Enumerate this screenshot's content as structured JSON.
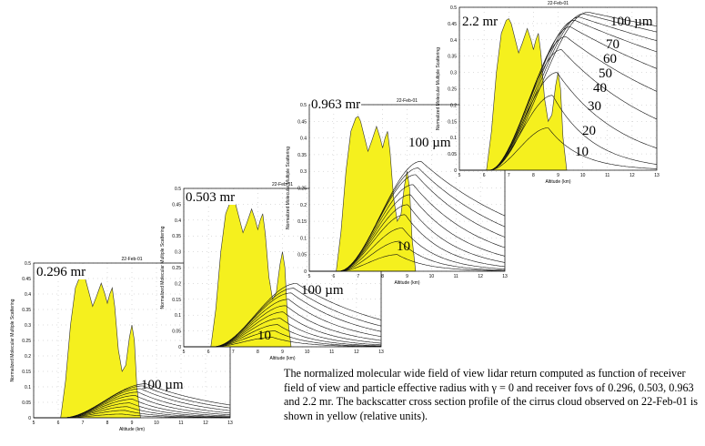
{
  "caption": "The normalized molecular wide field of view lidar return computed as function of receiver field of view and particle effective radius with γ = 0  and receiver fovs of 0.296, 0.503, 0.963 and 2.2 mr.  The backscatter cross section profile of the cirrus cloud observed on 22-Feb-01 is shown in yellow (relative units).",
  "chart_data": [
    {
      "type": "line",
      "title": "22-Feb-01",
      "fov_label": "0.296 mr",
      "xlabel": "Altitude (km)",
      "ylabel": "Normalized Molecular Multiple Scattering",
      "xlim": [
        5,
        13
      ],
      "ylim": [
        0,
        0.5
      ],
      "xticks": [
        "5",
        "6",
        "7",
        "8",
        "9",
        "10",
        "11",
        "12",
        "13"
      ],
      "yticks": [
        "0",
        "0.05",
        "0.1",
        "0.15",
        "0.2",
        "0.25",
        "0.3",
        "0.35",
        "0.4",
        "0.45",
        "0.5"
      ],
      "radius_labels": [
        "100 µm"
      ],
      "radii_um": [
        10,
        20,
        30,
        40,
        50,
        60,
        70,
        80,
        90,
        100
      ],
      "peak_values": [
        0.012,
        0.024,
        0.036,
        0.048,
        0.06,
        0.072,
        0.083,
        0.094,
        0.103,
        0.11
      ],
      "cloud_color": "#f5f01e"
    },
    {
      "type": "line",
      "title": "22-Feb-01",
      "fov_label": "0.503 mr",
      "xlabel": "Altitude (km)",
      "ylabel": "Normalized Molecular Multiple Scattering",
      "xlim": [
        5,
        13
      ],
      "ylim": [
        0,
        0.5
      ],
      "xticks": [
        "5",
        "6",
        "7",
        "8",
        "9",
        "10",
        "11",
        "12",
        "13"
      ],
      "yticks": [
        "0",
        "0.05",
        "0.1",
        "0.15",
        "0.2",
        "0.25",
        "0.3",
        "0.35",
        "0.4",
        "0.45",
        "0.5"
      ],
      "radius_labels": [
        "100 µm",
        "10"
      ],
      "radii_um": [
        10,
        20,
        30,
        40,
        50,
        60,
        70,
        80,
        90,
        100
      ],
      "peak_values": [
        0.03,
        0.05,
        0.07,
        0.09,
        0.11,
        0.13,
        0.15,
        0.17,
        0.185,
        0.2
      ],
      "cloud_color": "#f5f01e"
    },
    {
      "type": "line",
      "title": "22-Feb-01",
      "fov_label": "0.963 mr",
      "xlabel": "Altitude (km)",
      "ylabel": "Normalized Molecular Multiple Scattering",
      "xlim": [
        5,
        13
      ],
      "ylim": [
        0,
        0.5
      ],
      "xticks": [
        "5",
        "6",
        "7",
        "8",
        "9",
        "10",
        "11",
        "12",
        "13"
      ],
      "yticks": [
        "0",
        "0.05",
        "0.1",
        "0.15",
        "0.2",
        "0.25",
        "0.3",
        "0.35",
        "0.4",
        "0.45",
        "0.5"
      ],
      "radius_labels": [
        "100 µm",
        "10"
      ],
      "radii_um": [
        10,
        20,
        30,
        40,
        50,
        60,
        70,
        80,
        90,
        100
      ],
      "peak_values": [
        0.05,
        0.09,
        0.13,
        0.17,
        0.2,
        0.23,
        0.26,
        0.29,
        0.31,
        0.33
      ],
      "cloud_color": "#f5f01e"
    },
    {
      "type": "line",
      "title": "22-Feb-01",
      "fov_label": "2.2 mr",
      "xlabel": "Altitude (km)",
      "ylabel": "Normalized Molecular Multiple Scattering",
      "xlim": [
        5,
        13
      ],
      "ylim": [
        0,
        0.5
      ],
      "xticks": [
        "5",
        "6",
        "7",
        "8",
        "9",
        "10",
        "11",
        "12",
        "13"
      ],
      "yticks": [
        "0",
        "0.05",
        "0.1",
        "0.15",
        "0.2",
        "0.25",
        "0.3",
        "0.35",
        "0.4",
        "0.45",
        "0.5"
      ],
      "radius_labels": [
        "100 µm",
        "70",
        "60",
        "50",
        "40",
        "30",
        "20",
        "10"
      ],
      "radii_um": [
        10,
        20,
        30,
        40,
        50,
        60,
        70,
        80,
        90,
        100
      ],
      "peak_values": [
        0.13,
        0.23,
        0.3,
        0.37,
        0.41,
        0.44,
        0.46,
        0.47,
        0.48,
        0.485
      ],
      "cloud_color": "#f5f01e"
    }
  ],
  "cloud_profile": {
    "altitude_km": [
      6.1,
      6.3,
      6.5,
      6.7,
      6.9,
      7.0,
      7.1,
      7.3,
      7.4,
      7.55,
      7.75,
      7.9,
      8.0,
      8.1,
      8.2,
      8.3,
      8.45,
      8.6,
      8.75,
      8.9,
      9.0,
      9.1,
      9.2,
      9.35
    ],
    "value": [
      0,
      0.12,
      0.3,
      0.42,
      0.46,
      0.465,
      0.45,
      0.39,
      0.36,
      0.39,
      0.435,
      0.4,
      0.37,
      0.4,
      0.42,
      0.36,
      0.22,
      0.15,
      0.17,
      0.26,
      0.3,
      0.25,
      0.1,
      0
    ]
  }
}
